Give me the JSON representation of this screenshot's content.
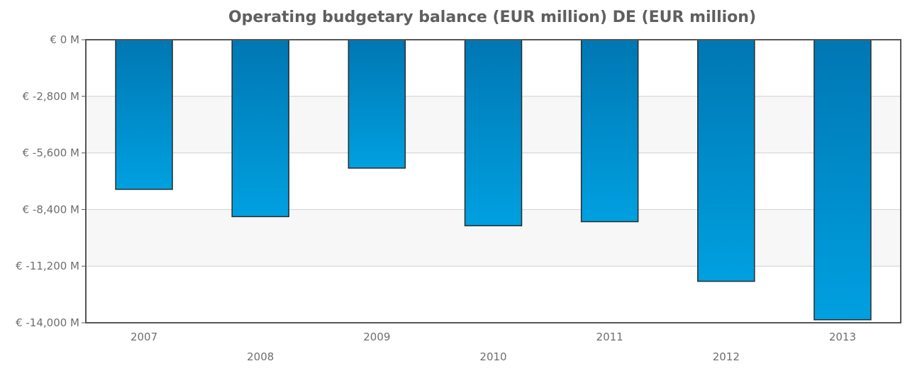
{
  "chart_data": {
    "type": "bar",
    "title": "Operating budgetary balance (EUR million) DE (EUR million)",
    "xlabel": "",
    "ylabel": "",
    "categories": [
      "2007",
      "2008",
      "2009",
      "2010",
      "2011",
      "2012",
      "2013"
    ],
    "values": [
      -7400,
      -8750,
      -6350,
      -9200,
      -9000,
      -11950,
      -13850
    ],
    "ylim": [
      -14000,
      0
    ],
    "y_ticks": [
      0,
      -2800,
      -5600,
      -8400,
      -11200,
      -14000
    ],
    "y_tick_labels": [
      "€ 0 M",
      "€ -2,800 M",
      "€ -5,600 M",
      "€ -8,400 M",
      "€ -11,200 M",
      "€ -14,000 M"
    ],
    "grid": true,
    "alternating_bands": true,
    "legend": "none",
    "colors": {
      "bar_top": "#0077b3",
      "bar_bottom": "#00a0e0",
      "bar_stroke": "#2b2b2b",
      "band": "#f7f7f7",
      "grid": "#d0d0d0",
      "axis": "#555555"
    }
  }
}
